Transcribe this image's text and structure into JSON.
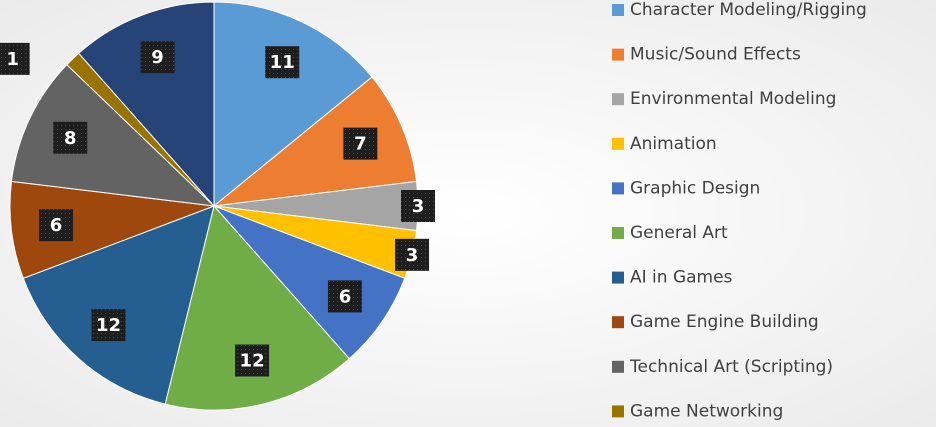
{
  "chart_data": {
    "type": "pie",
    "categories": [
      "Character Modeling/Rigging",
      "Music/Sound Effects",
      "Environmental Modeling",
      "Animation",
      "Graphic Design",
      "General Art",
      "AI in Games",
      "Game Engine Building",
      "Technical Art (Scripting)",
      "Game Networking",
      null
    ],
    "values": [
      11,
      7,
      3,
      3,
      6,
      12,
      12,
      6,
      8,
      1,
      9
    ],
    "colors": [
      "#5b9bd5",
      "#ed7d31",
      "#a5a5a5",
      "#ffc000",
      "#4472c4",
      "#70ad47",
      "#255e91",
      "#9e480e",
      "#636363",
      "#997300",
      "#264478"
    ],
    "legend": "right"
  }
}
